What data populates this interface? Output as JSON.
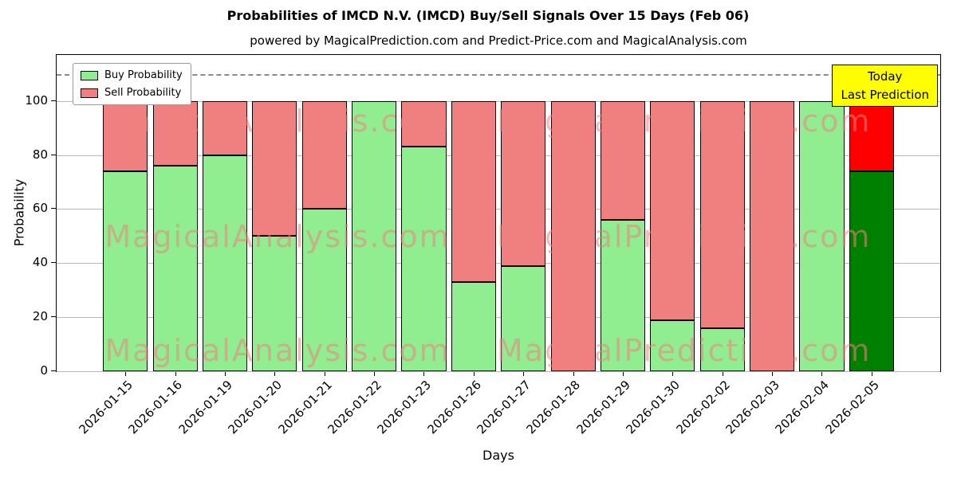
{
  "title": "Probabilities of IMCD N.V. (IMCD) Buy/Sell Signals Over 15 Days (Feb 06)",
  "subtitle": "powered by MagicalPrediction.com and Predict-Price.com and MagicalAnalysis.com",
  "legend": {
    "buy_label": "Buy Probability",
    "sell_label": "Sell Probability"
  },
  "annotation": {
    "line1": "Today",
    "line2": "Last Prediction",
    "bg": "#ffff00"
  },
  "watermarks": [
    "MagicalAnalysis.com",
    "MagicalPrediction.com"
  ],
  "chart_data": {
    "type": "bar",
    "stacked": true,
    "title": "Probabilities of IMCD N.V. (IMCD) Buy/Sell Signals Over 15 Days (Feb 06)",
    "xlabel": "Days",
    "ylabel": "Probability",
    "categories": [
      "2026-01-15",
      "2026-01-16",
      "2026-01-19",
      "2026-01-20",
      "2026-01-21",
      "2026-01-22",
      "2026-01-23",
      "2026-01-26",
      "2026-01-27",
      "2026-01-28",
      "2026-01-29",
      "2026-01-30",
      "2026-02-02",
      "2026-02-03",
      "2026-02-04",
      "2026-02-05"
    ],
    "series": [
      {
        "name": "Buy Probability",
        "color": "#90ee90",
        "values": [
          74,
          76,
          80,
          50,
          60,
          100,
          83,
          33,
          39,
          0,
          56,
          19,
          16,
          0,
          100,
          74
        ]
      },
      {
        "name": "Sell Probability",
        "color": "#f08080",
        "values": [
          26,
          24,
          20,
          50,
          40,
          0,
          17,
          67,
          61,
          100,
          44,
          81,
          84,
          100,
          0,
          26
        ]
      }
    ],
    "today_index": 15,
    "today_colors": {
      "buy": "#008000",
      "sell": "#ff0000"
    },
    "yticks": [
      0,
      20,
      40,
      60,
      80,
      100
    ],
    "ylim": [
      0,
      117
    ],
    "dashed_line_y": 110,
    "grid": true,
    "legend_position": "upper left"
  }
}
